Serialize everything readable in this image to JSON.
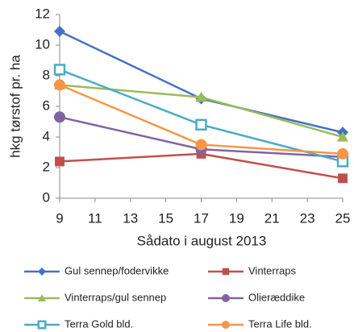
{
  "chart_data": {
    "type": "line",
    "x_label": "Sådato i august 2013",
    "y_label": "hkg tørstof pr. ha",
    "x": [
      9,
      17,
      25
    ],
    "xlim": [
      9,
      25
    ],
    "xticks": [
      9,
      11,
      13,
      15,
      17,
      19,
      21,
      23,
      25
    ],
    "ylim": [
      0,
      12
    ],
    "yticks": [
      0,
      2,
      4,
      6,
      8,
      10,
      12
    ],
    "grid": false,
    "legend": "bottom",
    "series": [
      {
        "name": "Gul sennep/fodervikke",
        "color": "#4472c4",
        "marker": "diamond",
        "values": [
          10.9,
          6.5,
          4.3
        ]
      },
      {
        "name": "Vinterraps",
        "color": "#c0504d",
        "marker": "square",
        "values": [
          2.4,
          2.9,
          1.3
        ]
      },
      {
        "name": "Vinterraps/gul sennep",
        "color": "#9bbb59",
        "marker": "triangle",
        "values": [
          7.4,
          6.6,
          4.0
        ]
      },
      {
        "name": "Olieræddike",
        "color": "#8064a2",
        "marker": "circle",
        "values": [
          5.3,
          3.2,
          2.7
        ]
      },
      {
        "name": "Terra Gold bld.",
        "color": "#4bacc6",
        "marker": "open-square",
        "values": [
          8.4,
          4.8,
          2.4
        ]
      },
      {
        "name": "Terra Life bld.",
        "color": "#f79646",
        "marker": "circle",
        "values": [
          7.4,
          3.5,
          2.9
        ]
      }
    ]
  }
}
